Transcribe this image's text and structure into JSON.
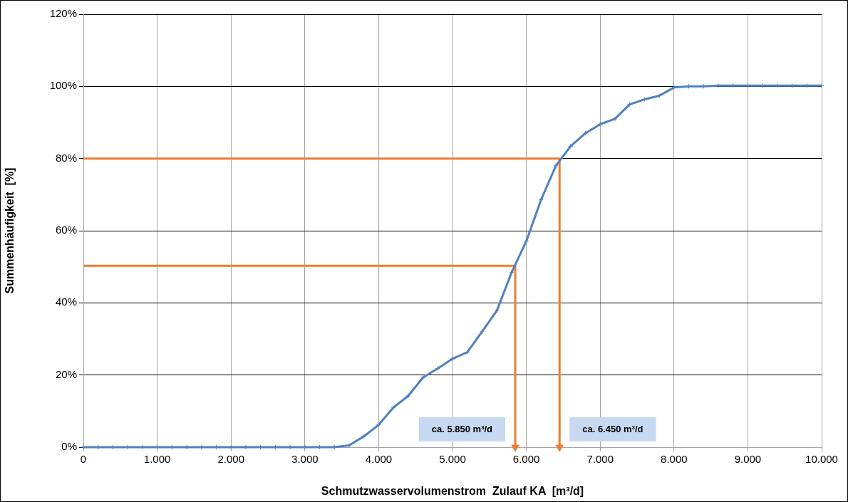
{
  "chart_data": {
    "type": "line",
    "xlabel": "Schmutzwasservolumenstrom  Zulauf KA  [m³/d]",
    "ylabel": "Summenhäufigkeit  [%]",
    "series": [
      {
        "color": "#4f81bd",
        "marker": "cross",
        "x": [
          0,
          200,
          400,
          600,
          800,
          1000,
          1200,
          1400,
          1600,
          1800,
          2000,
          2200,
          2400,
          2600,
          2800,
          3000,
          3200,
          3400,
          3600,
          3800,
          4000,
          4200,
          4400,
          4600,
          4800,
          5000,
          5200,
          5400,
          5600,
          5800,
          6000,
          6200,
          6400,
          6600,
          6800,
          7000,
          7200,
          7400,
          7600,
          7800,
          8000,
          8200,
          8400,
          8600,
          8800,
          9000,
          9200,
          9400,
          9600,
          9800,
          10000
        ],
        "values": [
          0,
          0,
          0,
          0,
          0,
          0,
          0,
          0,
          0,
          0,
          0,
          0,
          0,
          0,
          0,
          0,
          0,
          0,
          0.5,
          3,
          6.2,
          11,
          14.2,
          19.3,
          21.8,
          24.5,
          26.3,
          32,
          37.8,
          48.4,
          57.1,
          68.6,
          78,
          83.4,
          87,
          89.5,
          91,
          95,
          96.4,
          97.4,
          99.7,
          100,
          100,
          100.2,
          100.2,
          100.2,
          100.2,
          100.2,
          100.2,
          100.2,
          100.2
        ]
      },
      {
        "color": "#ed7d31",
        "marker": "none",
        "x": [
          0,
          5850,
          5850
        ],
        "values": [
          50.3,
          50.3,
          0
        ]
      },
      {
        "color": "#ed7d31",
        "marker": "none",
        "x": [
          0,
          6450,
          6450
        ],
        "values": [
          80,
          80,
          0
        ]
      }
    ],
    "annotations": [
      {
        "text": "ca. 5.850 m³/d",
        "x": 5850,
        "y": 0
      },
      {
        "text": "ca. 6.450 m³/d",
        "x": 6450,
        "y": 0
      }
    ],
    "xlim": [
      0,
      10000
    ],
    "xticks": [
      0,
      {
        "value": 1000,
        "label": "1.000"
      },
      {
        "value": 2000,
        "label": "2.000"
      },
      {
        "value": 3000,
        "label": "3.000"
      },
      {
        "value": 4000,
        "label": "4.000"
      },
      {
        "value": 5000,
        "label": "5.000"
      },
      {
        "value": 6000,
        "label": "6.000"
      },
      {
        "value": 7000,
        "label": "7.000"
      },
      {
        "value": 8000,
        "label": "8.000"
      },
      {
        "value": 9000,
        "label": "9.000"
      },
      {
        "value": 10000,
        "label": "10.000"
      }
    ],
    "ylim": [
      0,
      120
    ],
    "yticks": [
      {
        "value": 0,
        "label": "0%"
      },
      {
        "value": 20,
        "label": "20%"
      },
      {
        "value": 40,
        "label": "40%"
      },
      {
        "value": 60,
        "label": "60%"
      },
      {
        "value": 80,
        "label": "80%"
      },
      {
        "value": 100,
        "label": "100%"
      },
      {
        "value": 120,
        "label": "120%"
      }
    ],
    "grid": true,
    "legend": false
  }
}
